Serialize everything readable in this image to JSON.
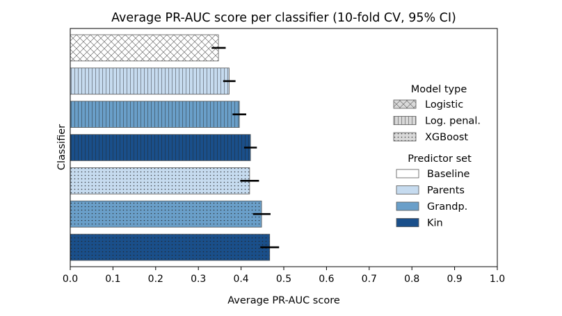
{
  "chart_data": {
    "type": "bar",
    "orientation": "horizontal",
    "title": "Average PR-AUC score per classifier (10-fold CV, 95% CI)",
    "xlabel": "Average PR-AUC score",
    "ylabel": "Classifier",
    "xlim": [
      0,
      1
    ],
    "xticks": [
      "0.0",
      "0.1",
      "0.2",
      "0.3",
      "0.4",
      "0.5",
      "0.6",
      "0.7",
      "0.8",
      "0.9",
      "1.0"
    ],
    "grid": false,
    "legend_placement": "center-right",
    "bars": [
      {
        "model": "Logistic",
        "predictor": "Baseline",
        "value": 0.347,
        "ci": [
          0.331,
          0.364
        ]
      },
      {
        "model": "Log. penal.",
        "predictor": "Parents",
        "value": 0.372,
        "ci": [
          0.358,
          0.387
        ]
      },
      {
        "model": "Log. penal.",
        "predictor": "Grandp.",
        "value": 0.396,
        "ci": [
          0.38,
          0.412
        ]
      },
      {
        "model": "Log. penal.",
        "predictor": "Kin",
        "value": 0.422,
        "ci": [
          0.407,
          0.437
        ]
      },
      {
        "model": "XGBoost",
        "predictor": "Parents",
        "value": 0.42,
        "ci": [
          0.398,
          0.442
        ]
      },
      {
        "model": "XGBoost",
        "predictor": "Grandp.",
        "value": 0.448,
        "ci": [
          0.428,
          0.469
        ]
      },
      {
        "model": "XGBoost",
        "predictor": "Kin",
        "value": 0.467,
        "ci": [
          0.445,
          0.489
        ]
      }
    ],
    "legend": {
      "model_title": "Model type",
      "models": [
        {
          "label": "Logistic",
          "hatch": "cross"
        },
        {
          "label": "Log. penal.",
          "hatch": "vertical"
        },
        {
          "label": "XGBoost",
          "hatch": "dots"
        }
      ],
      "predictor_title": "Predictor set",
      "predictors": [
        {
          "label": "Baseline",
          "color": "#ffffff"
        },
        {
          "label": "Parents",
          "color": "#c6dbef"
        },
        {
          "label": "Grandp.",
          "color": "#6a9fc9"
        },
        {
          "label": "Kin",
          "color": "#1a4f8a"
        }
      ]
    }
  }
}
